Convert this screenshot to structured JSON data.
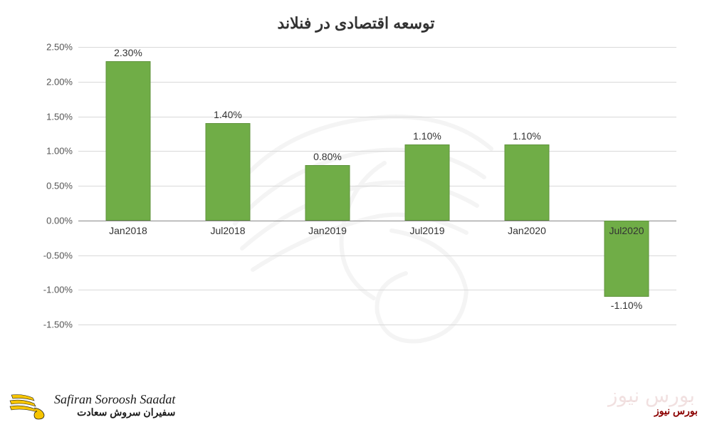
{
  "chart": {
    "type": "bar",
    "title": "توسعه اقتصادی در فنلاند",
    "title_fontsize": 22,
    "title_color": "#333333",
    "background_color": "#ffffff",
    "grid_color": "#d9d9d9",
    "zero_line_color": "#888888",
    "bar_color": "#70ad47",
    "bar_border": "rgba(0,0,0,0.15)",
    "bar_width_ratio": 0.45,
    "label_fontsize": 14,
    "ytick_fontsize": 13,
    "ylim": [
      -1.5,
      2.5
    ],
    "ytick_step": 0.5,
    "yticks": [
      "2.50%",
      "2.00%",
      "1.50%",
      "1.00%",
      "0.50%",
      "0.00%",
      "-0.50%",
      "-1.00%",
      "-1.50%"
    ],
    "ytick_values": [
      2.5,
      2.0,
      1.5,
      1.0,
      0.5,
      0.0,
      -0.5,
      -1.0,
      -1.5
    ],
    "categories": [
      "Jan2018",
      "Jul2018",
      "Jan2019",
      "Jul2019",
      "Jan2020",
      "Jul2020"
    ],
    "values": [
      2.3,
      1.4,
      0.8,
      1.1,
      1.1,
      -1.1
    ],
    "value_labels": [
      "2.30%",
      "1.40%",
      "0.80%",
      "1.10%",
      "1.10%",
      "-1.10%"
    ]
  },
  "branding": {
    "left_logo_en": "Safiran Soroosh Saadat",
    "left_logo_fa": "سفیران سروش سعادت",
    "right_text": "بورس نیوز",
    "right_text_color": "#8b0000",
    "wing_fill": "#f6c400",
    "wing_stroke": "#1a1a1a"
  },
  "watermark": {
    "opacity": 0.08,
    "stroke": "#808080"
  }
}
